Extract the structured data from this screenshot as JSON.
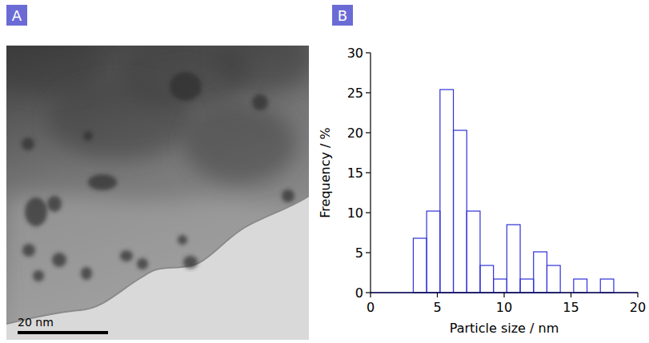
{
  "panel_labels": [
    "A",
    "B"
  ],
  "image": {
    "scale_bar": "20 nm"
  },
  "chart_data": {
    "type": "histogram",
    "bins": [
      3.2,
      4.2,
      5.2,
      6.2,
      7.2,
      8.2,
      9.2,
      10.2,
      11.2,
      12.2,
      13.2,
      14.2,
      15.2,
      16.2,
      17.2,
      18.2
    ],
    "values": [
      6.8,
      10.2,
      25.4,
      20.3,
      10.2,
      3.4,
      1.7,
      8.5,
      1.7,
      5.1,
      3.4,
      0,
      1.7,
      0,
      1.7
    ],
    "color": "#3030d8",
    "xlabel": "Particle size / nm",
    "ylabel": "Frequency / %",
    "xlim": [
      0,
      20
    ],
    "ylim": [
      0,
      30
    ],
    "xticks": [
      0,
      5,
      10,
      15,
      20
    ],
    "yticks": [
      0,
      5,
      10,
      15,
      20,
      25,
      30
    ]
  }
}
